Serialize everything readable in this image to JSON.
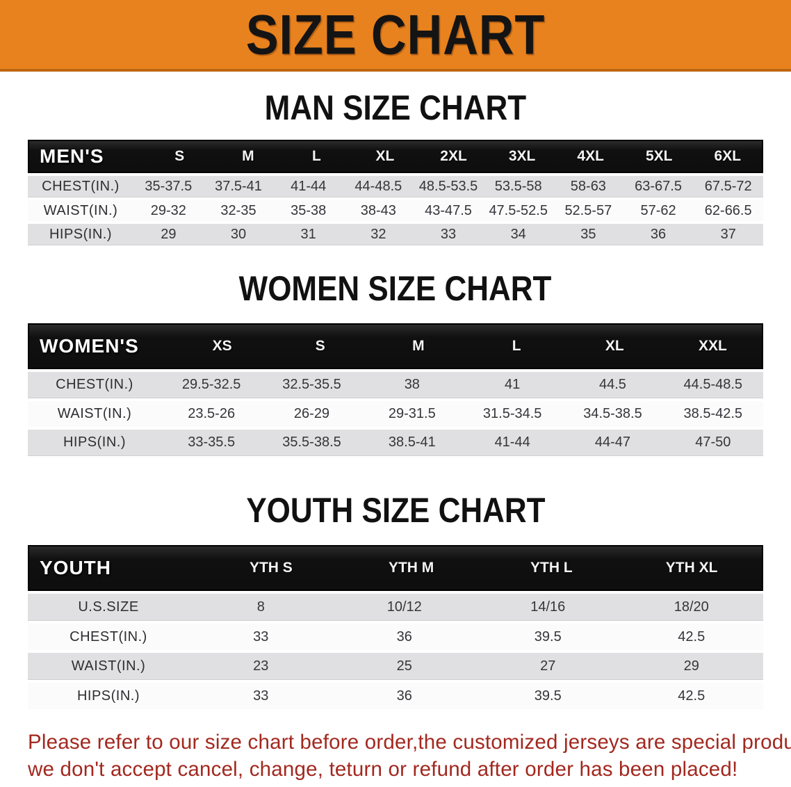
{
  "banner": {
    "title": "SIZE CHART"
  },
  "sections": [
    {
      "heading": "MAN SIZE CHART",
      "label_header": "MEN'S",
      "columns": [
        "S",
        "M",
        "L",
        "XL",
        "2XL",
        "3XL",
        "4XL",
        "5XL",
        "6XL"
      ],
      "rows": [
        {
          "label": "CHEST(IN.)",
          "values": [
            "35-37.5",
            "37.5-41",
            "41-44",
            "44-48.5",
            "48.5-53.5",
            "53.5-58",
            "58-63",
            "63-67.5",
            "67.5-72"
          ]
        },
        {
          "label": "WAIST(IN.)",
          "values": [
            "29-32",
            "32-35",
            "35-38",
            "38-43",
            "43-47.5",
            "47.5-52.5",
            "52.5-57",
            "57-62",
            "62-66.5"
          ]
        },
        {
          "label": "HIPS(IN.)",
          "values": [
            "29",
            "30",
            "31",
            "32",
            "33",
            "34",
            "35",
            "36",
            "37"
          ]
        }
      ]
    },
    {
      "heading": "WOMEN SIZE CHART",
      "label_header": "WOMEN'S",
      "columns": [
        "XS",
        "S",
        "M",
        "L",
        "XL",
        "XXL"
      ],
      "rows": [
        {
          "label": "CHEST(IN.)",
          "values": [
            "29.5-32.5",
            "32.5-35.5",
            "38",
            "41",
            "44.5",
            "44.5-48.5"
          ]
        },
        {
          "label": "WAIST(IN.)",
          "values": [
            "23.5-26",
            "26-29",
            "29-31.5",
            "31.5-34.5",
            "34.5-38.5",
            "38.5-42.5"
          ]
        },
        {
          "label": "HIPS(IN.)",
          "values": [
            "33-35.5",
            "35.5-38.5",
            "38.5-41",
            "41-44",
            "44-47",
            "47-50"
          ]
        }
      ]
    },
    {
      "heading": "YOUTH SIZE CHART",
      "label_header": "YOUTH",
      "columns": [
        "YTH S",
        "YTH M",
        "YTH L",
        "YTH XL"
      ],
      "rows": [
        {
          "label": "U.S.SIZE",
          "values": [
            "8",
            "10/12",
            "14/16",
            "18/20"
          ]
        },
        {
          "label": "CHEST(IN.)",
          "values": [
            "33",
            "36",
            "39.5",
            "42.5"
          ]
        },
        {
          "label": "WAIST(IN.)",
          "values": [
            "23",
            "25",
            "27",
            "29"
          ]
        },
        {
          "label": "HIPS(IN.)",
          "values": [
            "33",
            "36",
            "39.5",
            "42.5"
          ]
        }
      ]
    }
  ],
  "footer": {
    "line1": "Please refer to our size chart before order,the customized jerseys are special products,",
    "line2": "we don't accept cancel, change, teturn or refund after order has been placed!"
  },
  "colors": {
    "banner_orange": "#e8821e",
    "banner_border": "#bf660f",
    "header_black": "#141414",
    "row_gray": "#e0e0e2",
    "row_white": "#fbfbfb",
    "footer_red": "#a2281f"
  }
}
